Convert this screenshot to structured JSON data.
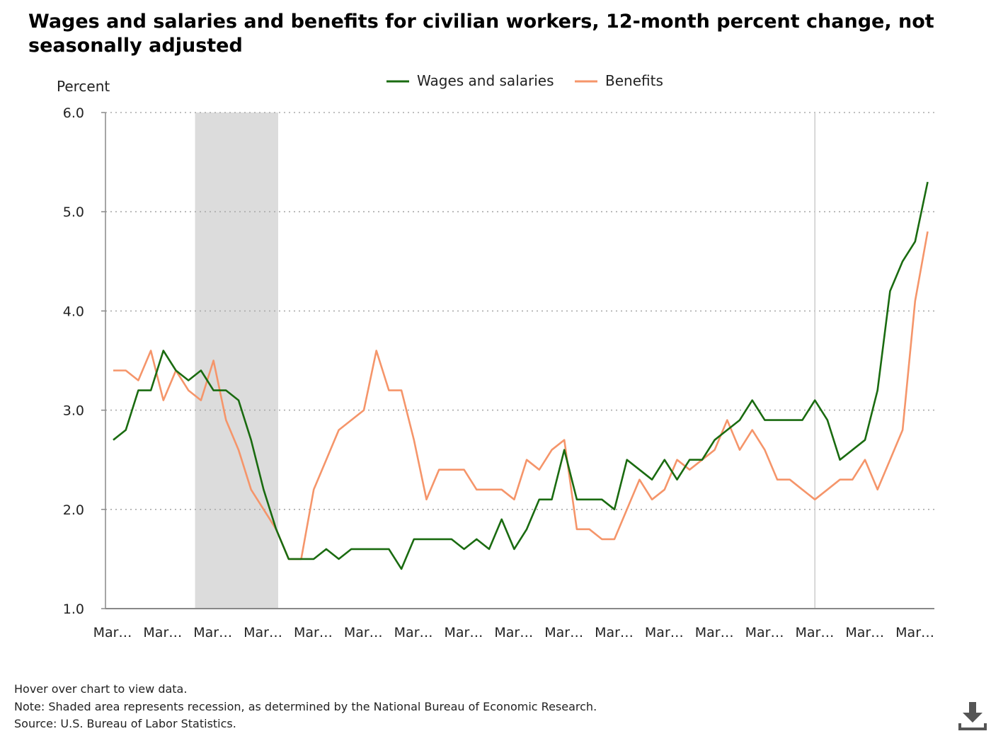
{
  "title": "Wages and salaries and benefits for civilian workers, 12-month percent change, not seasonally adjusted",
  "footer": {
    "hover_hint": "Hover over chart to view data.",
    "note": "Note: Shaded area represents recession, as determined by the National Bureau of Economic Research.",
    "source": "Source: U.S. Bureau of Labor Statistics."
  },
  "download_icon": "download-icon",
  "colors": {
    "wages": "#1a6b10",
    "benefits": "#f5956a",
    "recession": "#dcdcdc",
    "grid": "#aaaaaa",
    "axis": "#888888"
  },
  "chart_data": {
    "type": "line",
    "ylabel": "Percent",
    "ylim": [
      1.0,
      6.0
    ],
    "yticks": [
      "1.0",
      "2.0",
      "3.0",
      "4.0",
      "5.0",
      "6.0"
    ],
    "x_tick_labels": [
      "Mar…",
      "Mar…",
      "Mar…",
      "Mar…",
      "Mar…",
      "Mar…",
      "Mar…",
      "Mar…",
      "Mar…",
      "Mar…",
      "Mar…",
      "Mar…",
      "Mar…",
      "Mar…",
      "Mar…",
      "Mar…",
      "Mar…"
    ],
    "legend_position": "top-center",
    "grid": true,
    "recession_quarters": [
      7,
      12
    ],
    "marker_quarter": 56,
    "series": [
      {
        "name": "Wages and salaries",
        "values": [
          2.7,
          2.8,
          3.2,
          3.2,
          3.6,
          3.4,
          3.3,
          3.4,
          3.2,
          3.2,
          3.1,
          2.7,
          2.2,
          1.8,
          1.5,
          1.5,
          1.5,
          1.6,
          1.5,
          1.6,
          1.6,
          1.6,
          1.6,
          1.4,
          1.7,
          1.7,
          1.7,
          1.7,
          1.6,
          1.7,
          1.6,
          1.9,
          1.6,
          1.8,
          2.1,
          2.1,
          2.6,
          2.1,
          2.1,
          2.1,
          2.0,
          2.5,
          2.4,
          2.3,
          2.5,
          2.3,
          2.5,
          2.5,
          2.7,
          2.8,
          2.9,
          3.1,
          2.9,
          2.9,
          2.9,
          2.9,
          3.1,
          2.9,
          2.5,
          2.6,
          2.7,
          3.2,
          4.2,
          4.5,
          4.7,
          5.3
        ]
      },
      {
        "name": "Benefits",
        "values": [
          3.4,
          3.4,
          3.3,
          3.6,
          3.1,
          3.4,
          3.2,
          3.1,
          3.5,
          2.9,
          2.6,
          2.2,
          2.0,
          1.8,
          1.5,
          1.5,
          2.2,
          2.5,
          2.8,
          2.9,
          3.0,
          3.6,
          3.2,
          3.2,
          2.7,
          2.1,
          2.4,
          2.4,
          2.4,
          2.2,
          2.2,
          2.2,
          2.1,
          2.5,
          2.4,
          2.6,
          2.7,
          1.8,
          1.8,
          1.7,
          1.7,
          2.0,
          2.3,
          2.1,
          2.2,
          2.5,
          2.4,
          2.5,
          2.6,
          2.9,
          2.6,
          2.8,
          2.6,
          2.3,
          2.3,
          2.2,
          2.1,
          2.2,
          2.3,
          2.3,
          2.5,
          2.2,
          2.5,
          2.8,
          4.1,
          4.8
        ]
      }
    ]
  }
}
